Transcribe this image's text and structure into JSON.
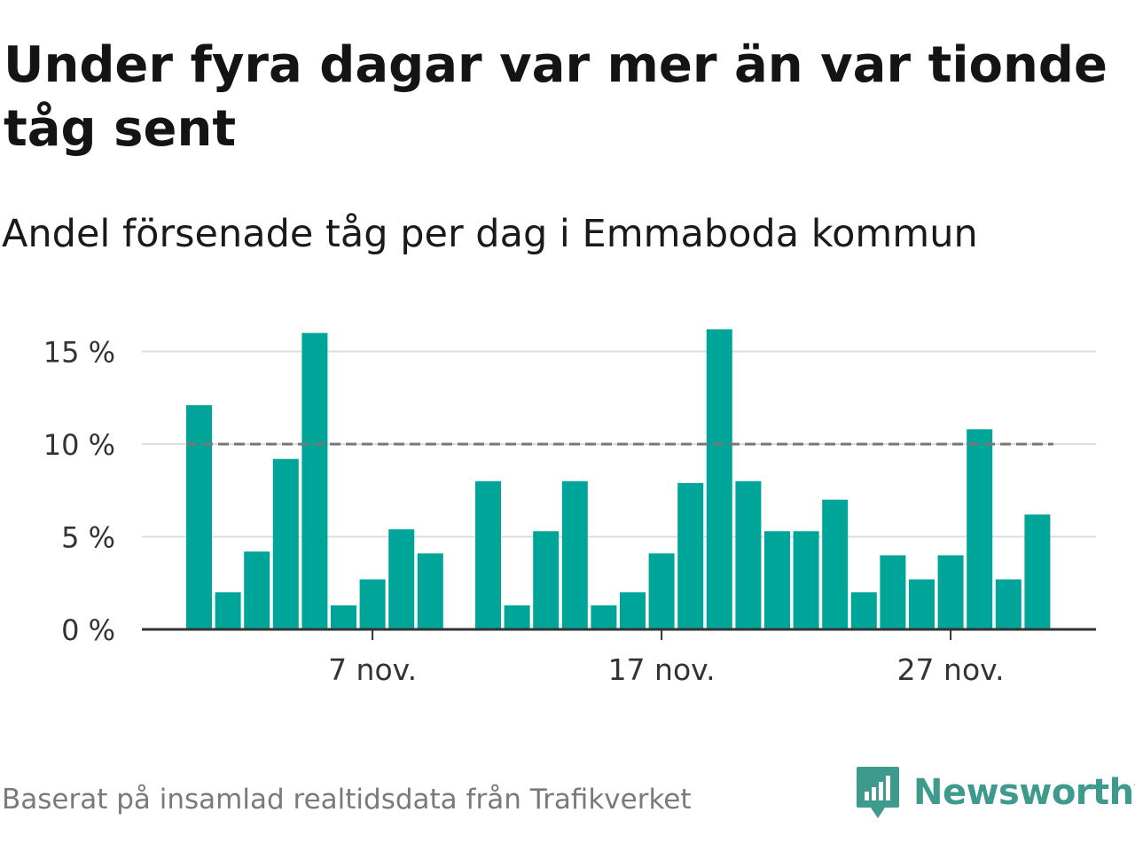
{
  "title": "Under fyra dagar var mer än var tionde tåg sent",
  "subtitle": "Andel försenade tåg per dag i Emmaboda kommun",
  "footer": "Baserat på insamlad realtidsdata från Trafikverket",
  "logo": {
    "text": "Newsworthy",
    "icon": "newsworthy-logo-icon",
    "color": "#3d9a8c"
  },
  "colors": {
    "bar": "#00a59a",
    "grid": "#dddddd",
    "axis": "#333333",
    "reference": "#777777",
    "text": "#333333"
  },
  "chart_data": {
    "type": "bar",
    "title": "Under fyra dagar var mer än var tionde tåg sent",
    "subtitle": "Andel försenade tåg per dag i Emmaboda kommun",
    "unit": "%",
    "x": [
      "2024-11-01",
      "2024-11-02",
      "2024-11-03",
      "2024-11-04",
      "2024-11-05",
      "2024-11-06",
      "2024-11-07",
      "2024-11-08",
      "2024-11-09",
      "2024-11-10",
      "2024-11-11",
      "2024-11-12",
      "2024-11-13",
      "2024-11-14",
      "2024-11-15",
      "2024-11-16",
      "2024-11-17",
      "2024-11-18",
      "2024-11-19",
      "2024-11-20",
      "2024-11-21",
      "2024-11-22",
      "2024-11-23",
      "2024-11-24",
      "2024-11-25",
      "2024-11-26",
      "2024-11-27",
      "2024-11-28",
      "2024-11-29",
      "2024-11-30"
    ],
    "values": [
      12.1,
      2.0,
      4.2,
      9.2,
      16.0,
      1.3,
      2.7,
      5.4,
      4.1,
      null,
      8.0,
      1.3,
      5.3,
      8.0,
      1.3,
      2.0,
      4.1,
      7.9,
      16.2,
      8.0,
      5.3,
      5.3,
      7.0,
      2.0,
      4.0,
      2.7,
      4.0,
      10.8,
      2.7,
      6.2
    ],
    "reference_line": 10,
    "ylim": [
      0,
      17
    ],
    "yticks": [
      0,
      5,
      10,
      15
    ],
    "ytick_labels": [
      "0 %",
      "5 %",
      "10 %",
      "15 %"
    ],
    "xticks": [
      "2024-11-07",
      "2024-11-17",
      "2024-11-27"
    ],
    "xtick_labels": [
      "7 nov.",
      "17 nov.",
      "27 nov."
    ],
    "grid": true,
    "legend": "none"
  }
}
